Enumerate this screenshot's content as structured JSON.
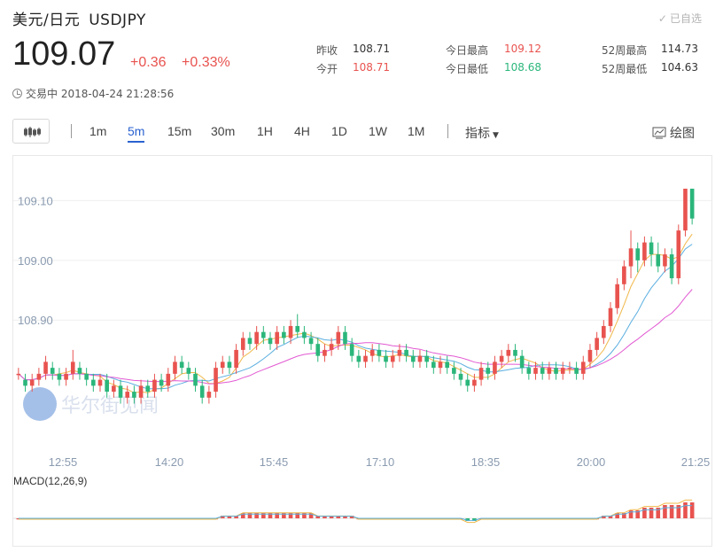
{
  "header": {
    "name": "美元/日元",
    "symbol": "USDJPY",
    "watch_label": "已自选",
    "price": "109.07",
    "change": "+0.36",
    "change_pct": "+0.33%",
    "status": "交易中",
    "timestamp": "2018-04-24 21:28:56"
  },
  "stats": [
    {
      "label": "昨收",
      "value": "108.71",
      "color": "dark"
    },
    {
      "label": "今开",
      "value": "108.71",
      "color": "red"
    },
    {
      "label": "今日最高",
      "value": "109.12",
      "color": "red"
    },
    {
      "label": "今日最低",
      "value": "108.68",
      "color": "green"
    },
    {
      "label": "52周最高",
      "value": "114.73",
      "color": "dark"
    },
    {
      "label": "52周最低",
      "value": "104.63",
      "color": "dark"
    }
  ],
  "toolbar": {
    "timeframes": [
      "1m",
      "5m",
      "15m",
      "30m",
      "1H",
      "4H",
      "1D",
      "1W",
      "1M"
    ],
    "active_timeframe": "5m",
    "indicator_label": "指标",
    "draw_label": "绘图"
  },
  "watermark": "华尔街见闻",
  "colors": {
    "up": "#e8534f",
    "down": "#2bb67b",
    "ma_short": "#f0b84a",
    "ma_mid": "#5aaee0",
    "ma_long": "#e25ad3",
    "grid": "#efefef",
    "axis_text": "#8a9bb0"
  },
  "chart_data": {
    "type": "candlestick",
    "y_ticks": [
      "109.10",
      "109.00",
      "108.90"
    ],
    "x_ticks": [
      "12:55",
      "14:20",
      "15:45",
      "17:10",
      "18:35",
      "20:00",
      "21:25"
    ],
    "ylim": [
      108.7,
      109.16
    ],
    "macd_label": "MACD(12,26,9)",
    "candles": [
      [
        108.81,
        108.81,
        108.8,
        108.82
      ],
      [
        108.8,
        108.79,
        108.78,
        108.81
      ],
      [
        108.79,
        108.8,
        108.78,
        108.81
      ],
      [
        108.8,
        108.81,
        108.79,
        108.82
      ],
      [
        108.81,
        108.83,
        108.8,
        108.84
      ],
      [
        108.82,
        108.81,
        108.8,
        108.83
      ],
      [
        108.81,
        108.8,
        108.79,
        108.82
      ],
      [
        108.8,
        108.81,
        108.79,
        108.82
      ],
      [
        108.81,
        108.83,
        108.8,
        108.85
      ],
      [
        108.82,
        108.81,
        108.8,
        108.83
      ],
      [
        108.81,
        108.8,
        108.79,
        108.82
      ],
      [
        108.8,
        108.79,
        108.78,
        108.81
      ],
      [
        108.79,
        108.8,
        108.78,
        108.81
      ],
      [
        108.8,
        108.78,
        108.77,
        108.81
      ],
      [
        108.78,
        108.79,
        108.77,
        108.8
      ],
      [
        108.79,
        108.77,
        108.76,
        108.8
      ],
      [
        108.77,
        108.78,
        108.76,
        108.79
      ],
      [
        108.78,
        108.77,
        108.76,
        108.79
      ],
      [
        108.77,
        108.79,
        108.76,
        108.8
      ],
      [
        108.79,
        108.78,
        108.77,
        108.8
      ],
      [
        108.78,
        108.8,
        108.77,
        108.81
      ],
      [
        108.8,
        108.79,
        108.78,
        108.81
      ],
      [
        108.79,
        108.81,
        108.78,
        108.82
      ],
      [
        108.81,
        108.83,
        108.8,
        108.84
      ],
      [
        108.83,
        108.82,
        108.81,
        108.84
      ],
      [
        108.82,
        108.81,
        108.8,
        108.83
      ],
      [
        108.81,
        108.79,
        108.78,
        108.82
      ],
      [
        108.79,
        108.77,
        108.76,
        108.8
      ],
      [
        108.77,
        108.78,
        108.76,
        108.79
      ],
      [
        108.78,
        108.82,
        108.77,
        108.83
      ],
      [
        108.82,
        108.83,
        108.81,
        108.84
      ],
      [
        108.83,
        108.82,
        108.81,
        108.84
      ],
      [
        108.82,
        108.85,
        108.81,
        108.86
      ],
      [
        108.85,
        108.87,
        108.84,
        108.88
      ],
      [
        108.87,
        108.86,
        108.85,
        108.88
      ],
      [
        108.86,
        108.88,
        108.85,
        108.89
      ],
      [
        108.88,
        108.87,
        108.86,
        108.89
      ],
      [
        108.87,
        108.86,
        108.85,
        108.88
      ],
      [
        108.86,
        108.88,
        108.85,
        108.89
      ],
      [
        108.88,
        108.87,
        108.86,
        108.89
      ],
      [
        108.87,
        108.89,
        108.86,
        108.9
      ],
      [
        108.89,
        108.88,
        108.87,
        108.91
      ],
      [
        108.88,
        108.87,
        108.86,
        108.89
      ],
      [
        108.87,
        108.86,
        108.85,
        108.88
      ],
      [
        108.86,
        108.84,
        108.83,
        108.87
      ],
      [
        108.84,
        108.85,
        108.83,
        108.86
      ],
      [
        108.85,
        108.86,
        108.84,
        108.87
      ],
      [
        108.86,
        108.88,
        108.85,
        108.89
      ],
      [
        108.88,
        108.86,
        108.85,
        108.89
      ],
      [
        108.86,
        108.84,
        108.83,
        108.87
      ],
      [
        108.84,
        108.83,
        108.82,
        108.85
      ],
      [
        108.83,
        108.84,
        108.82,
        108.85
      ],
      [
        108.84,
        108.85,
        108.83,
        108.86
      ],
      [
        108.85,
        108.84,
        108.83,
        108.86
      ],
      [
        108.84,
        108.83,
        108.82,
        108.85
      ],
      [
        108.83,
        108.84,
        108.82,
        108.85
      ],
      [
        108.84,
        108.85,
        108.83,
        108.86
      ],
      [
        108.85,
        108.84,
        108.83,
        108.86
      ],
      [
        108.84,
        108.83,
        108.82,
        108.85
      ],
      [
        108.83,
        108.84,
        108.82,
        108.85
      ],
      [
        108.84,
        108.83,
        108.82,
        108.85
      ],
      [
        108.83,
        108.82,
        108.81,
        108.84
      ],
      [
        108.82,
        108.83,
        108.81,
        108.84
      ],
      [
        108.83,
        108.82,
        108.81,
        108.84
      ],
      [
        108.82,
        108.81,
        108.8,
        108.83
      ],
      [
        108.81,
        108.8,
        108.79,
        108.82
      ],
      [
        108.8,
        108.79,
        108.78,
        108.81
      ],
      [
        108.79,
        108.8,
        108.78,
        108.81
      ],
      [
        108.8,
        108.82,
        108.79,
        108.83
      ],
      [
        108.82,
        108.81,
        108.8,
        108.83
      ],
      [
        108.81,
        108.83,
        108.8,
        108.84
      ],
      [
        108.83,
        108.84,
        108.82,
        108.85
      ],
      [
        108.84,
        108.85,
        108.83,
        108.86
      ],
      [
        108.85,
        108.84,
        108.83,
        108.86
      ],
      [
        108.84,
        108.82,
        108.81,
        108.85
      ],
      [
        108.82,
        108.81,
        108.8,
        108.83
      ],
      [
        108.81,
        108.82,
        108.8,
        108.83
      ],
      [
        108.82,
        108.81,
        108.8,
        108.83
      ],
      [
        108.81,
        108.82,
        108.8,
        108.83
      ],
      [
        108.82,
        108.81,
        108.8,
        108.83
      ],
      [
        108.81,
        108.82,
        108.8,
        108.83
      ],
      [
        108.82,
        108.82,
        108.81,
        108.83
      ],
      [
        108.82,
        108.81,
        108.8,
        108.83
      ],
      [
        108.81,
        108.83,
        108.8,
        108.84
      ],
      [
        108.83,
        108.85,
        108.82,
        108.86
      ],
      [
        108.85,
        108.87,
        108.84,
        108.88
      ],
      [
        108.87,
        108.89,
        108.86,
        108.9
      ],
      [
        108.89,
        108.92,
        108.88,
        108.93
      ],
      [
        108.92,
        108.96,
        108.91,
        108.97
      ],
      [
        108.96,
        108.99,
        108.95,
        109.0
      ],
      [
        108.99,
        109.02,
        108.97,
        109.05
      ],
      [
        109.02,
        109.0,
        108.98,
        109.03
      ],
      [
        109.0,
        109.03,
        108.99,
        109.04
      ],
      [
        109.03,
        109.01,
        108.99,
        109.04
      ],
      [
        109.01,
        108.99,
        108.98,
        109.03
      ],
      [
        108.99,
        109.01,
        108.98,
        109.02
      ],
      [
        109.01,
        108.97,
        108.96,
        109.02
      ],
      [
        108.97,
        109.05,
        108.96,
        109.06
      ],
      [
        109.05,
        109.12,
        109.04,
        109.12
      ],
      [
        109.12,
        109.07,
        109.06,
        109.12
      ]
    ],
    "macd": [
      0.0,
      0.0,
      0.0,
      0.0,
      0.0,
      0.0,
      0.0,
      0.0,
      0.0,
      0.0,
      0.0,
      0.0,
      0.0,
      0.0,
      0.0,
      0.0,
      0.0,
      0.0,
      0.0,
      0.0,
      0.0,
      0.0,
      0.0,
      0.0,
      0.0,
      0.0,
      0.0,
      0.0,
      0.0,
      0.0,
      0.01,
      0.01,
      0.01,
      0.02,
      0.02,
      0.02,
      0.02,
      0.02,
      0.02,
      0.02,
      0.02,
      0.02,
      0.02,
      0.02,
      0.01,
      0.01,
      0.01,
      0.01,
      0.01,
      0.01,
      0.0,
      0.0,
      0.0,
      0.0,
      0.0,
      0.0,
      0.0,
      0.0,
      0.0,
      0.0,
      0.0,
      0.0,
      0.0,
      0.0,
      0.0,
      0.0,
      -0.01,
      -0.01,
      0.0,
      0.0,
      0.0,
      0.0,
      0.0,
      0.0,
      0.0,
      0.0,
      0.0,
      0.0,
      0.0,
      0.0,
      0.0,
      0.0,
      0.0,
      0.0,
      0.0,
      0.0,
      0.01,
      0.01,
      0.02,
      0.02,
      0.03,
      0.03,
      0.04,
      0.04,
      0.04,
      0.05,
      0.05,
      0.05,
      0.06,
      0.06
    ]
  }
}
